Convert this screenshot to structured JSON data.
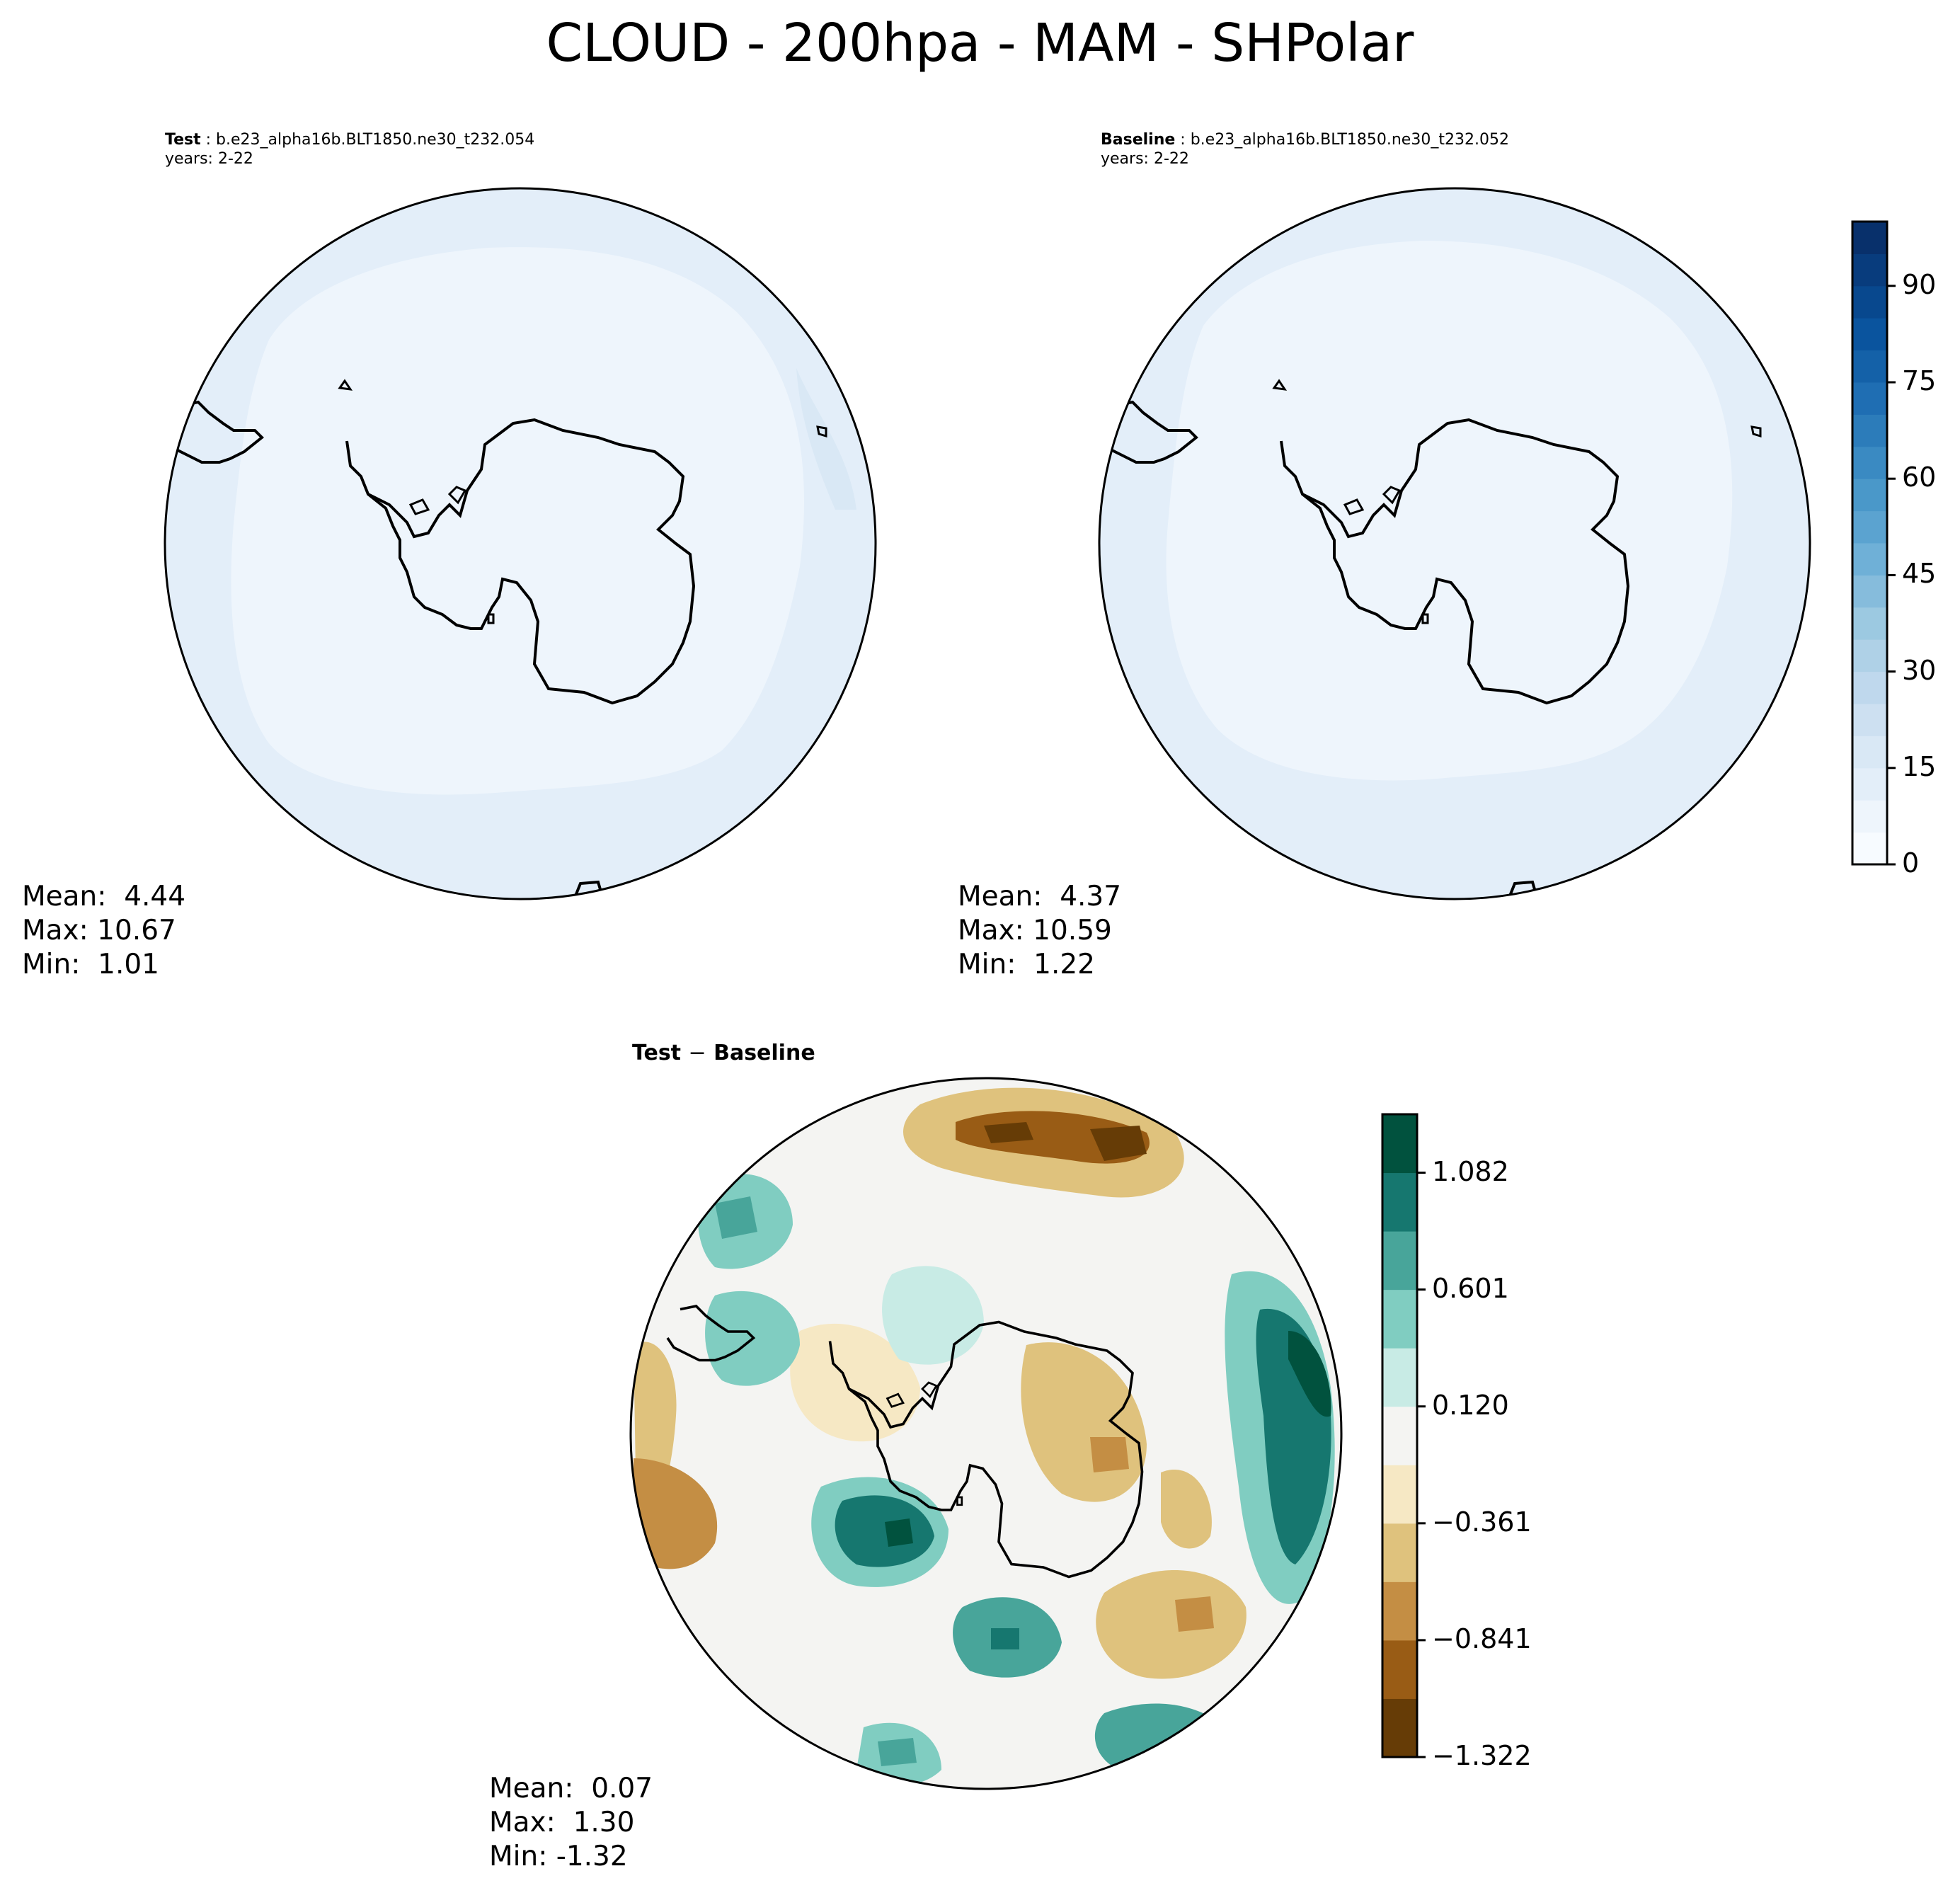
{
  "title": "CLOUD - 200hpa - MAM - SHPolar",
  "panels": {
    "test": {
      "label": "Test",
      "case": "b.e23_alpha16b.BLT1850.ne30_t232.054",
      "years": "years: 2-22",
      "mean": "4.44",
      "max": "10.67",
      "min": "1.01"
    },
    "baseline": {
      "label": "Baseline",
      "case": "b.e23_alpha16b.BLT1850.ne30_t232.052",
      "years": "years: 2-22",
      "mean": "4.37",
      "max": "10.59",
      "min": "1.22"
    },
    "diff": {
      "title_a": "Test",
      "title_sep": "−",
      "title_b": "Baseline",
      "mean": "0.07",
      "max": "1.30",
      "min": "-1.32"
    }
  },
  "colorbar_main": {
    "ticks": [
      "0",
      "15",
      "30",
      "45",
      "60",
      "75",
      "90"
    ],
    "min": 0,
    "max": 100,
    "colors": [
      "#f7fbff",
      "#eef5fc",
      "#e3eef9",
      "#d9e8f5",
      "#cde0f1",
      "#bfd8ed",
      "#afd1e7",
      "#9cc9e1",
      "#86bcdc",
      "#6fb0d7",
      "#5ba3d0",
      "#4a98c9",
      "#3a8ac2",
      "#2c7cba",
      "#1f6eb3",
      "#1461a8",
      "#0a549e",
      "#08488e",
      "#083c7d",
      "#08306b"
    ]
  },
  "colorbar_diff": {
    "ticks": [
      "1.082",
      "0.601",
      "0.120",
      "−0.361",
      "−0.841",
      "−1.322"
    ],
    "colors": [
      "#663c06",
      "#995c15",
      "#c48e44",
      "#dfc27d",
      "#f6e8c4",
      "#f4f4f2",
      "#c8ebe5",
      "#80cdc1",
      "#48a59a",
      "#16776f",
      "#01523e"
    ]
  }
}
